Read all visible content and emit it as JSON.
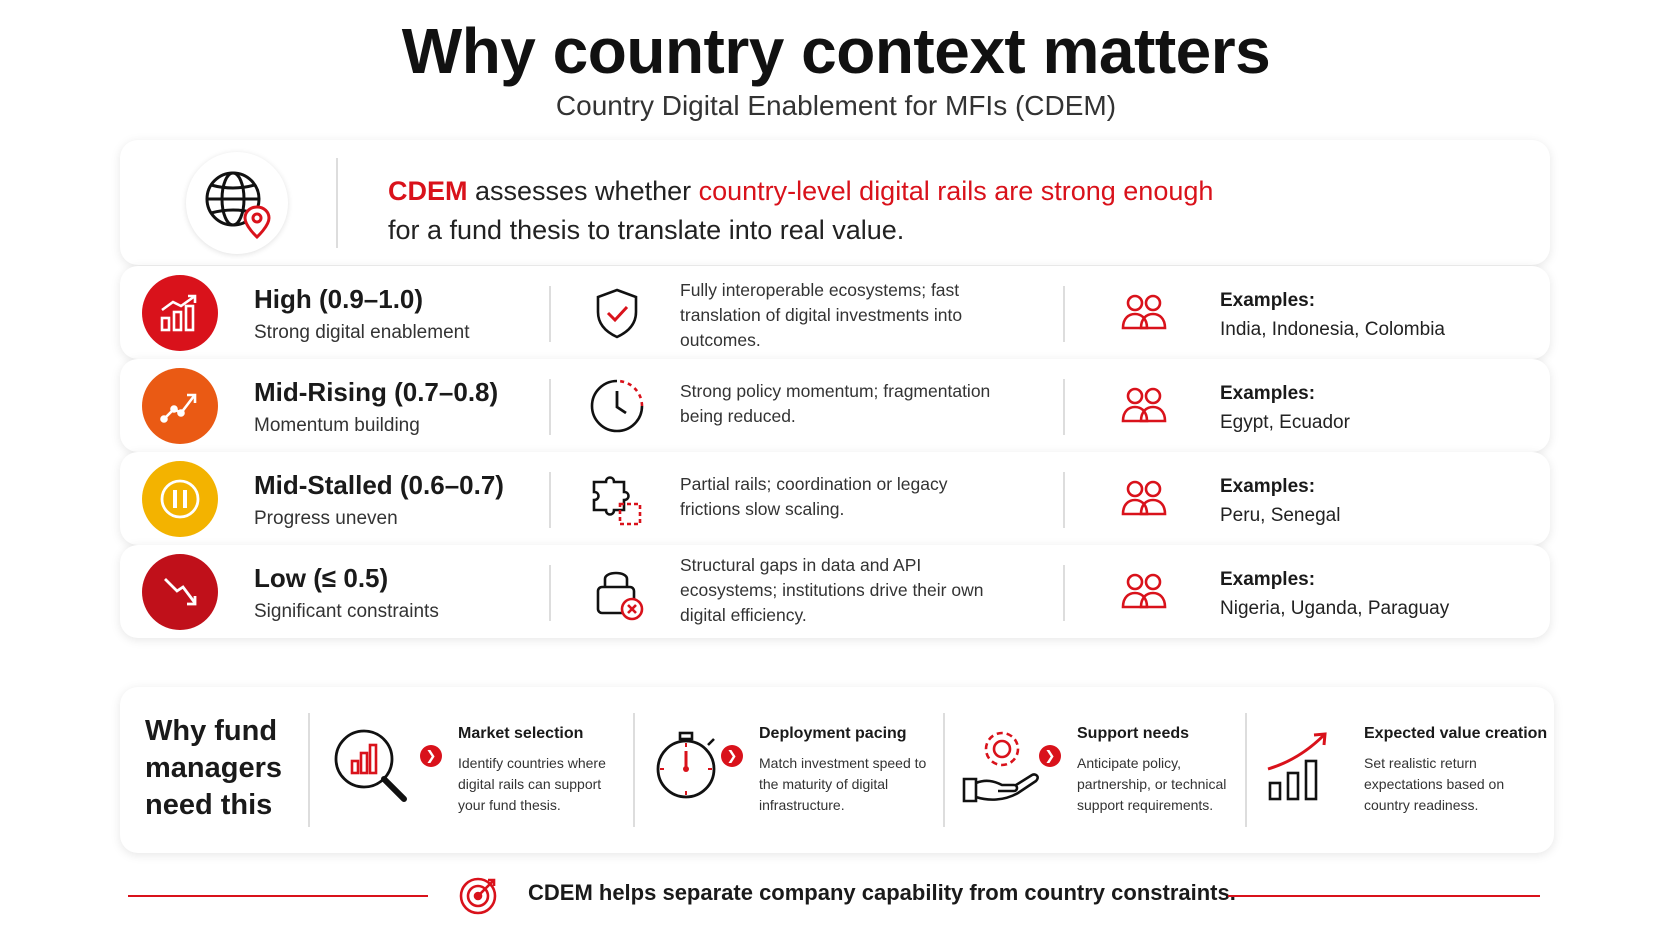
{
  "header": {
    "title": "Why country context matters",
    "subtitle": "Country Digital Enablement for MFIs (CDEM)"
  },
  "intro": {
    "icon": "globe-pin-icon",
    "lead": "CDEM",
    "text_1": " assesses whether ",
    "highlight": "country-level digital rails are strong enough",
    "text_2": "for a fund thesis to translate into real value."
  },
  "tiers": [
    {
      "title": "High (0.9–1.0)",
      "subtitle": "Strong digital enablement",
      "description": "Fully interoperable ecosystems; fast translation of digital investments into outcomes.",
      "examples_label": "Examples:",
      "examples": "India, Indonesia, Colombia",
      "color": "#d9121b",
      "icon": "bar-chart-up-icon",
      "mid_icon": "shield-check-icon"
    },
    {
      "title": "Mid-Rising (0.7–0.8)",
      "subtitle": "Momentum building",
      "description": "Strong policy momentum; fragmentation being reduced.",
      "examples_label": "Examples:",
      "examples": "Egypt, Ecuador",
      "color": "#ea5a14",
      "icon": "trend-up-icon",
      "mid_icon": "clock-icon"
    },
    {
      "title": "Mid-Stalled (0.6–0.7)",
      "subtitle": "Progress uneven",
      "description": "Partial rails; coordination or legacy frictions slow scaling.",
      "examples_label": "Examples:",
      "examples": "Peru, Senegal",
      "color": "#f3b300",
      "icon": "pause-icon",
      "mid_icon": "puzzle-icon"
    },
    {
      "title": "Low (≤ 0.5)",
      "subtitle": "Significant constraints",
      "description": "Structural gaps in data and API ecosystems; institutions drive their own digital efficiency.",
      "examples_label": "Examples:",
      "examples": "Nigeria, Uganda, Paraguay",
      "color": "#c0101a",
      "icon": "trend-down-icon",
      "mid_icon": "lock-x-icon"
    }
  ],
  "why": {
    "title": "Why fund managers need this",
    "items": [
      {
        "heading": "Market selection",
        "body": "Identify countries where digital rails can support your fund thesis.",
        "icon": "magnifier-chart-icon"
      },
      {
        "heading": "Deployment pacing",
        "body": "Match investment speed to the maturity of digital infrastructure.",
        "icon": "stopwatch-icon"
      },
      {
        "heading": "Support needs",
        "body": "Anticipate policy, partnership, or technical support requirements.",
        "icon": "hand-gear-icon"
      },
      {
        "heading": "Expected value creation",
        "body": "Set realistic return expectations based on country readiness.",
        "icon": "growth-chart-icon"
      }
    ]
  },
  "footer": {
    "text": "CDEM helps separate company capability from country constraints.",
    "icon": "target-icon"
  },
  "colors": {
    "accent": "#d9121b"
  }
}
